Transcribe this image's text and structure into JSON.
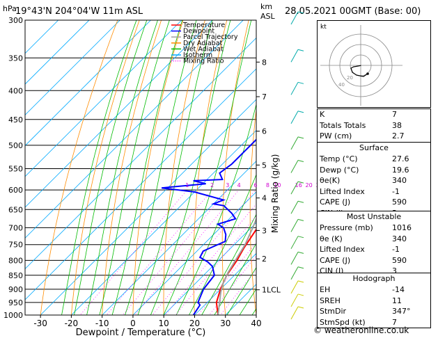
{
  "header": {
    "location": "19°43'N  204°04'W  11m  ASL",
    "datetime": "28.05.2021  00GMT  (Base: 00)",
    "hpa_label": "hPa",
    "km_label": "km",
    "asl_label": "ASL"
  },
  "chart_data": {
    "type": "line",
    "title": "19°43'N  204°04'W  11m  ASL",
    "xlabel": "Dewpoint / Temperature (°C)",
    "ylabel": "hPa",
    "mixing_ratio_axis_label": "Mixing Ratio (g/kg)",
    "xlim": [
      -35,
      40
    ],
    "ylim": [
      1000,
      300
    ],
    "x_ticks": [
      -30,
      -20,
      -10,
      0,
      10,
      20,
      30,
      40
    ],
    "pressure_levels": [
      300,
      350,
      400,
      450,
      500,
      550,
      600,
      650,
      700,
      750,
      800,
      850,
      900,
      950,
      1000
    ],
    "km_ticks": [
      {
        "label": "8",
        "p": 356
      },
      {
        "label": "7",
        "p": 410
      },
      {
        "label": "6",
        "p": 472
      },
      {
        "label": "5",
        "p": 542
      },
      {
        "label": "4",
        "p": 620
      },
      {
        "label": "3",
        "p": 708
      },
      {
        "label": "2",
        "p": 795
      },
      {
        "label": "1LCL",
        "p": 902
      }
    ],
    "mixing_ratio_labels": [
      "1",
      "2",
      "3",
      "4",
      "6",
      "8",
      "10",
      "16",
      "20",
      "25"
    ],
    "mixing_ratio_values": [
      1,
      2,
      3,
      4,
      6,
      8,
      10,
      16,
      20,
      25
    ],
    "legend": {
      "placement": "top-left",
      "entries": [
        {
          "name": "Temperature",
          "color": "#ff0000",
          "style": "solid"
        },
        {
          "name": "Dewpoint",
          "color": "#0000ff",
          "style": "solid"
        },
        {
          "name": "Parcel Trajectory",
          "color": "#a0a0a0",
          "style": "solid"
        },
        {
          "name": "Dry Adiabat",
          "color": "#ff8c00",
          "style": "solid"
        },
        {
          "name": "Wet Adiabat",
          "color": "#00bb00",
          "style": "solid"
        },
        {
          "name": "Isotherm",
          "color": "#00aaff",
          "style": "solid"
        },
        {
          "name": "Mixing Ratio",
          "color": "#ff00ff",
          "style": "dotted"
        }
      ]
    },
    "series": [
      {
        "name": "Temperature",
        "color": "#ff0000",
        "points": [
          [
            27.6,
            1000
          ],
          [
            23,
            950
          ],
          [
            20,
            900
          ],
          [
            17.5,
            850
          ],
          [
            16,
            800
          ],
          [
            14.2,
            760
          ],
          [
            12,
            700
          ],
          [
            7,
            650
          ],
          [
            4,
            600
          ],
          [
            0.5,
            550
          ],
          [
            -5,
            500
          ],
          [
            -12,
            450
          ],
          [
            -18,
            400
          ],
          [
            -27,
            350
          ],
          [
            -35,
            300
          ]
        ]
      },
      {
        "name": "Dewpoint",
        "color": "#0000ff",
        "points": [
          [
            19.6,
            1000
          ],
          [
            18.5,
            960
          ],
          [
            17,
            950
          ],
          [
            14.5,
            900
          ],
          [
            13.5,
            850
          ],
          [
            10,
            820
          ],
          [
            7,
            805
          ],
          [
            3,
            790
          ],
          [
            2,
            770
          ],
          [
            6,
            740
          ],
          [
            4,
            720
          ],
          [
            1,
            700
          ],
          [
            -2,
            690
          ],
          [
            2,
            675
          ],
          [
            -1,
            660
          ],
          [
            -6,
            640
          ],
          [
            -10,
            635
          ],
          [
            -8,
            625
          ],
          [
            -20,
            605
          ],
          [
            -32,
            595
          ],
          [
            -19,
            585
          ],
          [
            -24,
            578
          ],
          [
            -15,
            575
          ],
          [
            -18,
            560
          ],
          [
            -17,
            540
          ],
          [
            -17,
            500
          ],
          [
            -17,
            470
          ],
          [
            -20,
            450
          ],
          [
            -25,
            430
          ],
          [
            -30,
            400
          ],
          [
            -38,
            340
          ],
          [
            -45,
            300
          ]
        ]
      },
      {
        "name": "Parcel Trajectory",
        "color": "#a0a0a0",
        "points": [
          [
            27.6,
            1000
          ],
          [
            21,
            910
          ],
          [
            19,
            880
          ],
          [
            17,
            840
          ],
          [
            15.5,
            800
          ],
          [
            13.5,
            750
          ],
          [
            10.5,
            700
          ],
          [
            7,
            650
          ],
          [
            3.5,
            600
          ],
          [
            -0.5,
            550
          ],
          [
            -5,
            500
          ],
          [
            -11,
            450
          ],
          [
            -17,
            400
          ],
          [
            -24,
            350
          ],
          [
            -33,
            300
          ]
        ]
      }
    ]
  },
  "hodograph": {
    "unit_label": "kt",
    "ring_labels": [
      "20",
      "40"
    ],
    "points": [
      [
        0.2,
        0.1
      ],
      [
        -2,
        0.5
      ],
      [
        -5,
        1
      ],
      [
        -7,
        2
      ],
      [
        -6,
        5
      ],
      [
        -3,
        7
      ],
      [
        2,
        8
      ],
      [
        5,
        6
      ]
    ]
  },
  "indices": [
    {
      "label": "K",
      "value": "7"
    },
    {
      "label": "Totals Totals",
      "value": "38"
    },
    {
      "label": "PW (cm)",
      "value": "2.7"
    }
  ],
  "surface": {
    "title": "Surface",
    "rows": [
      {
        "label": "Temp (°C)",
        "value": "27.6"
      },
      {
        "label": "Dewp (°C)",
        "value": "19.6"
      },
      {
        "label": "θe(K)",
        "value": "340"
      },
      {
        "label": "Lifted Index",
        "value": "-1"
      },
      {
        "label": "CAPE (J)",
        "value": "590"
      },
      {
        "label": "CIN (J)",
        "value": "3"
      }
    ]
  },
  "most_unstable": {
    "title": "Most Unstable",
    "rows": [
      {
        "label": "Pressure (mb)",
        "value": "1016"
      },
      {
        "label": "θe (K)",
        "value": "340"
      },
      {
        "label": "Lifted Index",
        "value": "-1"
      },
      {
        "label": "CAPE (J)",
        "value": "590"
      },
      {
        "label": "CIN (J)",
        "value": "3"
      }
    ]
  },
  "hodograph_table": {
    "title": "Hodograph",
    "rows": [
      {
        "label": "EH",
        "value": "-14"
      },
      {
        "label": "SREH",
        "value": "11"
      },
      {
        "label": "StmDir",
        "value": "347°"
      },
      {
        "label": "StmSpd (kt)",
        "value": "7"
      }
    ]
  },
  "footer": {
    "credit": "© weatheronline.co.uk"
  }
}
